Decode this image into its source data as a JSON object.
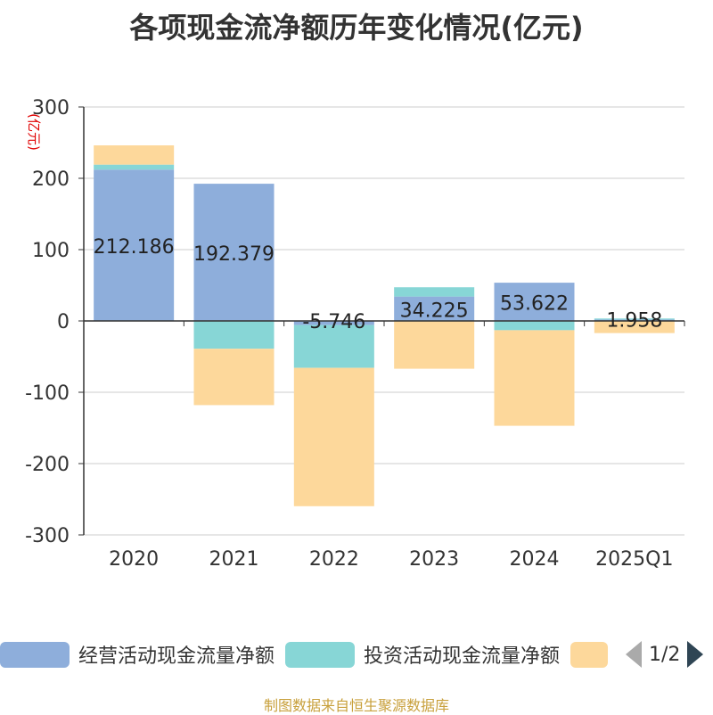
{
  "title": "各项现金流净额历年变化情况(亿元)",
  "source_note": "制图数据来自恒生聚源数据库",
  "legend": {
    "items": [
      {
        "label": "经营活动现金流量净额",
        "color": "#8eaedb"
      },
      {
        "label": "投资活动现金流量净额",
        "color": "#87d6d6"
      },
      {
        "label": "",
        "color": "#fdd89b"
      }
    ],
    "page": "1/2"
  },
  "chart_data": {
    "type": "bar",
    "stacked": true,
    "title": "各项现金流净额历年变化情况(亿元)",
    "ylabel": "(亿元)",
    "ylim": [
      -300,
      300
    ],
    "yticks": [
      300,
      200,
      100,
      0,
      -100,
      -200,
      -300
    ],
    "grid": true,
    "legend_position": "bottom",
    "categories": [
      "2020",
      "2021",
      "2022",
      "2023",
      "2024",
      "2025Q1"
    ],
    "series": [
      {
        "name": "经营活动现金流量净额",
        "color": "#8eaedb",
        "values": [
          212.186,
          192.379,
          -5.746,
          34.225,
          53.622,
          1.958
        ],
        "labels": [
          "212.186",
          "192.379",
          "-5.746",
          "34.225",
          "53.622",
          "1.958"
        ]
      },
      {
        "name": "投资活动现金流量净额",
        "color": "#87d6d6",
        "values": [
          7,
          -39,
          -60,
          13,
          -13,
          1.5
        ]
      },
      {
        "name": "",
        "color": "#fdd89b",
        "values": [
          27,
          -79,
          -194,
          -67,
          -134,
          -17
        ]
      }
    ]
  }
}
